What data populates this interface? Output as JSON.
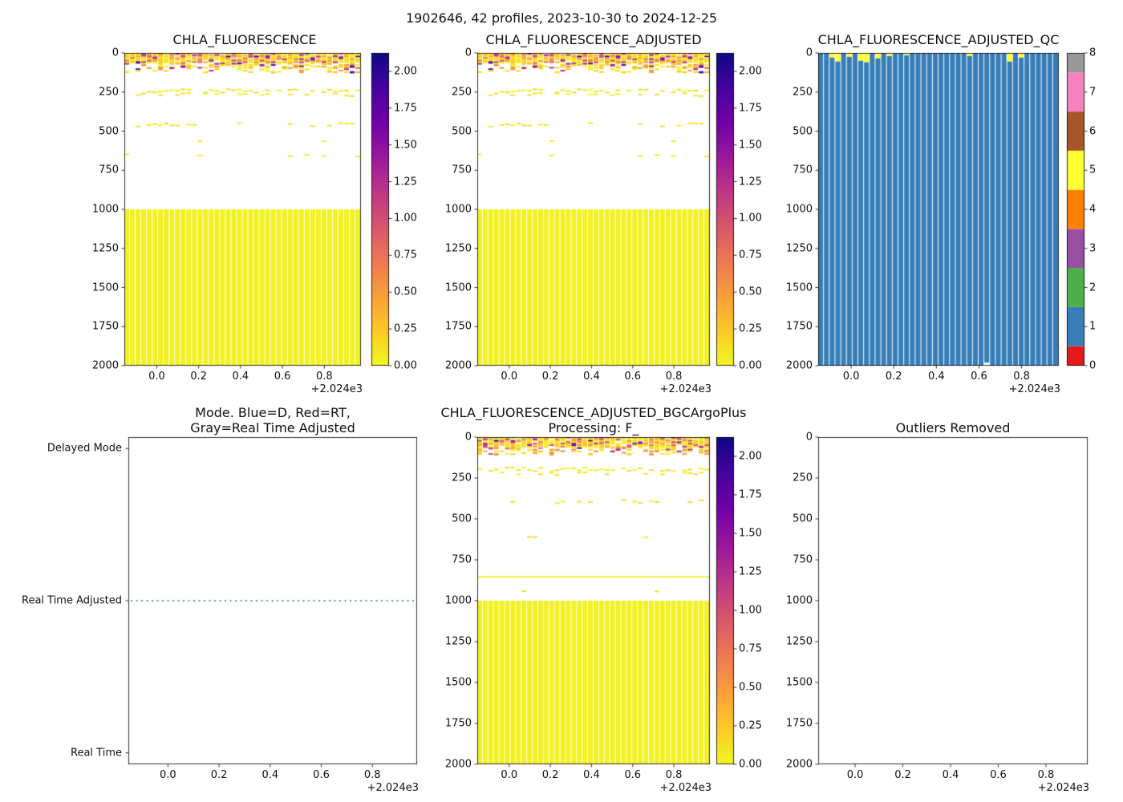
{
  "figure": {
    "title": "1902646, 42 profiles, 2023-10-30 to 2024-12-25",
    "background": "#ffffff"
  },
  "colors": {
    "plasma_scale": [
      "#0d0887",
      "#46039f",
      "#7201a8",
      "#9c179e",
      "#bd3786",
      "#d8576b",
      "#ed7953",
      "#fb9f3a",
      "#fdca26",
      "#f0f921"
    ],
    "qc_scale": [
      "#e41a1c",
      "#377eb8",
      "#4daf4a",
      "#984ea3",
      "#ff7f00",
      "#ffff33",
      "#a65628",
      "#f781bf",
      "#999999"
    ],
    "qc_good_blue": "#377eb8",
    "qc_flag_yellow": "#ffff33",
    "mode_line_teal": "#2d7f91",
    "axis_color": "#000000"
  },
  "chart_data": [
    {
      "id": "chla_fluorescence",
      "type": "heatmap",
      "title": "CHLA_FLUORESCENCE",
      "n_profiles": 42,
      "x_ticks": [
        "0.0",
        "0.2",
        "0.4",
        "0.6",
        "0.8"
      ],
      "x_tick_values": [
        0.0,
        0.2,
        0.4,
        0.6,
        0.8
      ],
      "x_offset_label": "+2.024e3",
      "x_range": [
        -0.155,
        0.975
      ],
      "y_ticks": [
        "0",
        "250",
        "500",
        "750",
        "1000",
        "1250",
        "1500",
        "1750",
        "2000"
      ],
      "y_tick_values": [
        0,
        250,
        500,
        750,
        1000,
        1250,
        1500,
        1750,
        2000
      ],
      "y_range": [
        0,
        2000
      ],
      "y_inverted": true,
      "grid": false,
      "colorbar": {
        "type": "continuous",
        "vmin": 0,
        "vmax": 2.125,
        "tick_labels": [
          "0.00",
          "0.25",
          "0.50",
          "0.75",
          "1.00",
          "1.25",
          "1.50",
          "1.75",
          "2.00"
        ],
        "tick_values": [
          0,
          0.25,
          0.5,
          0.75,
          1.0,
          1.25,
          1.5,
          1.75,
          2.0
        ]
      },
      "features": {
        "seed": 7,
        "surface_band": {
          "depth_top": 0,
          "depth_bottom": 120,
          "dense_bottom": 60
        },
        "dash_rows": [
          {
            "depth": 238,
            "coverage": 0.6
          },
          {
            "depth": 262,
            "coverage": 0.35
          },
          {
            "depth": 455,
            "coverage": 0.3
          },
          {
            "depth": 560,
            "coverage": 0.05
          },
          {
            "depth": 648,
            "coverage": 0.14
          },
          {
            "depth": 800,
            "coverage": 0.03
          }
        ],
        "deep_block": {
          "depth_top": 1000,
          "depth_bottom": 2000,
          "value": 0.04
        }
      }
    },
    {
      "id": "chla_fluorescence_adjusted",
      "type": "heatmap",
      "title": "CHLA_FLUORESCENCE_ADJUSTED",
      "n_profiles": 42,
      "x_ticks": [
        "0.0",
        "0.2",
        "0.4",
        "0.6",
        "0.8"
      ],
      "x_tick_values": [
        0.0,
        0.2,
        0.4,
        0.6,
        0.8
      ],
      "x_offset_label": "+2.024e3",
      "x_range": [
        -0.155,
        0.975
      ],
      "y_ticks": [
        "0",
        "250",
        "500",
        "750",
        "1000",
        "1250",
        "1500",
        "1750",
        "2000"
      ],
      "y_tick_values": [
        0,
        250,
        500,
        750,
        1000,
        1250,
        1500,
        1750,
        2000
      ],
      "y_range": [
        0,
        2000
      ],
      "y_inverted": true,
      "grid": false,
      "colorbar": {
        "type": "continuous",
        "vmin": 0,
        "vmax": 2.125,
        "tick_labels": [
          "0.00",
          "0.25",
          "0.50",
          "0.75",
          "1.00",
          "1.25",
          "1.50",
          "1.75",
          "2.00"
        ],
        "tick_values": [
          0,
          0.25,
          0.5,
          0.75,
          1.0,
          1.25,
          1.5,
          1.75,
          2.0
        ]
      },
      "features": {
        "seed": 7,
        "surface_band": {
          "depth_top": 0,
          "depth_bottom": 120,
          "dense_bottom": 60
        },
        "dash_rows": [
          {
            "depth": 238,
            "coverage": 0.6
          },
          {
            "depth": 262,
            "coverage": 0.35
          },
          {
            "depth": 455,
            "coverage": 0.3
          },
          {
            "depth": 560,
            "coverage": 0.05
          },
          {
            "depth": 648,
            "coverage": 0.14
          },
          {
            "depth": 800,
            "coverage": 0.03
          }
        ],
        "deep_block": {
          "depth_top": 1000,
          "depth_bottom": 2000,
          "value": 0.04
        }
      }
    },
    {
      "id": "chla_fluorescence_adjusted_qc",
      "type": "qc_columns",
      "title": "CHLA_FLUORESCENCE_ADJUSTED_QC",
      "n_profiles": 42,
      "x_ticks": [
        "0.0",
        "0.2",
        "0.4",
        "0.6",
        "0.8"
      ],
      "x_tick_values": [
        0.0,
        0.2,
        0.4,
        0.6,
        0.8
      ],
      "x_offset_label": "+2.024e3",
      "x_range": [
        -0.155,
        0.975
      ],
      "y_ticks": [
        "0",
        "250",
        "500",
        "750",
        "1000",
        "1250",
        "1500",
        "1750",
        "2000"
      ],
      "y_tick_values": [
        0,
        250,
        500,
        750,
        1000,
        1250,
        1500,
        1750,
        2000
      ],
      "y_range": [
        0,
        2000
      ],
      "y_inverted": true,
      "grid": false,
      "colorbar": {
        "type": "discrete",
        "vmax": 8,
        "boundaries": [
          0,
          0.5,
          1.5,
          2.5,
          3.5,
          4.5,
          5.5,
          6.5,
          7.5,
          8
        ],
        "tick_labels": [
          "0",
          "1",
          "2",
          "3",
          "4",
          "5",
          "6",
          "7",
          "8"
        ],
        "tick_values": [
          0,
          1,
          2,
          3,
          4,
          5,
          6,
          7,
          8
        ]
      },
      "features": {
        "base_qc_value": 1,
        "surface_flag_qc_value": 5,
        "yellow_top_depths": [
          0,
          0,
          30,
          55,
          0,
          25,
          0,
          50,
          60,
          0,
          35,
          0,
          20,
          0,
          0,
          15,
          0,
          0,
          0,
          0,
          0,
          0,
          0,
          0,
          0,
          0,
          20,
          0,
          0,
          0,
          0,
          0,
          0,
          55,
          0,
          30,
          0,
          0,
          0,
          0,
          0,
          0
        ],
        "missing_bottom": {
          "column": 29,
          "from_depth": 1980
        }
      }
    },
    {
      "id": "mode",
      "type": "mode_timeline",
      "title": "Mode. Blue=D, Red=RT,\nGray=Real Time Adjusted",
      "categories": [
        "Delayed Mode",
        "Real Time Adjusted",
        "Real Time"
      ],
      "line_category": "Real Time Adjusted",
      "line_style": "dotted",
      "x_ticks": [
        "0.0",
        "0.2",
        "0.4",
        "0.6",
        "0.8"
      ],
      "x_tick_values": [
        0.0,
        0.2,
        0.4,
        0.6,
        0.8
      ],
      "x_offset_label": "+2.024e3",
      "x_range": [
        -0.155,
        0.975
      ],
      "grid": false
    },
    {
      "id": "chla_fluorescence_adjusted_bgc",
      "type": "heatmap",
      "title": "CHLA_FLUORESCENCE_ADJUSTED_BGCArgoPlus\nProcessing: F_",
      "n_profiles": 42,
      "x_ticks": [
        "0.0",
        "0.2",
        "0.4",
        "0.6",
        "0.8"
      ],
      "x_tick_values": [
        0.0,
        0.2,
        0.4,
        0.6,
        0.8
      ],
      "x_offset_label": "+2.024e3",
      "x_range": [
        -0.155,
        0.975
      ],
      "y_ticks": [
        "0",
        "250",
        "500",
        "750",
        "1000",
        "1250",
        "1500",
        "1750",
        "2000"
      ],
      "y_tick_values": [
        0,
        250,
        500,
        750,
        1000,
        1250,
        1500,
        1750,
        2000
      ],
      "y_range": [
        0,
        2000
      ],
      "y_inverted": true,
      "grid": false,
      "colorbar": {
        "type": "continuous",
        "vmin": 0,
        "vmax": 2.125,
        "tick_labels": [
          "0.00",
          "0.25",
          "0.50",
          "0.75",
          "1.00",
          "1.25",
          "1.50",
          "1.75",
          "2.00"
        ],
        "tick_values": [
          0,
          0.25,
          0.5,
          0.75,
          1.0,
          1.25,
          1.5,
          1.75,
          2.0
        ]
      },
      "features": {
        "seed": 13,
        "surface_band": {
          "depth_top": 0,
          "depth_bottom": 100,
          "dense_bottom": 55
        },
        "dash_rows": [
          {
            "depth": 193,
            "coverage": 0.8
          },
          {
            "depth": 218,
            "coverage": 0.4
          },
          {
            "depth": 390,
            "coverage": 0.28
          },
          {
            "depth": 600,
            "coverage": 0.12
          },
          {
            "depth": 850,
            "coverage": 0.97
          },
          {
            "depth": 930,
            "coverage": 0.03
          }
        ],
        "deep_block": {
          "depth_top": 1000,
          "depth_bottom": 2000,
          "value": 0.04
        }
      }
    },
    {
      "id": "outliers_removed",
      "type": "empty_axes",
      "title": "Outliers Removed",
      "x_ticks": [
        "0.0",
        "0.2",
        "0.4",
        "0.6",
        "0.8"
      ],
      "x_tick_values": [
        0.0,
        0.2,
        0.4,
        0.6,
        0.8
      ],
      "x_offset_label": "+2.024e3",
      "x_range": [
        -0.155,
        0.975
      ],
      "y_ticks": [
        "0",
        "250",
        "500",
        "750",
        "1000",
        "1250",
        "1500",
        "1750",
        "2000"
      ],
      "y_tick_values": [
        0,
        250,
        500,
        750,
        1000,
        1250,
        1500,
        1750,
        2000
      ],
      "y_range": [
        0,
        2000
      ],
      "y_inverted": true,
      "grid": false
    }
  ]
}
